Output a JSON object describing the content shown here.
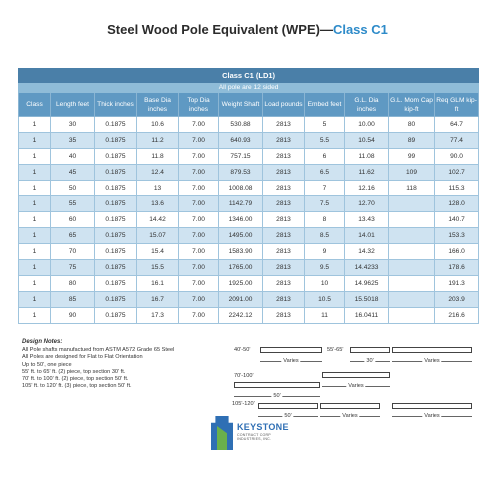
{
  "title": {
    "main": "Steel Wood Pole Equivalent (WPE)—",
    "accent": "Class C1"
  },
  "table": {
    "band_title": "Class C1 (LD1)",
    "band_sub": "All pole are 12 sided",
    "headers": [
      "Class",
      "Length feet",
      "Thick inches",
      "Base Dia inches",
      "Top Dia inches",
      "Weight Shaft",
      "Load pounds",
      "Embed feet",
      "G.L. Dia inches",
      "G.L. Mom Cap kip-ft",
      "Req GLM kip-ft"
    ],
    "rows": [
      [
        "1",
        "30",
        "0.1875",
        "10.6",
        "7.00",
        "530.88",
        "2813",
        "5",
        "10.00",
        "80",
        "64.7"
      ],
      [
        "1",
        "35",
        "0.1875",
        "11.2",
        "7.00",
        "640.93",
        "2813",
        "5.5",
        "10.54",
        "89",
        "77.4"
      ],
      [
        "1",
        "40",
        "0.1875",
        "11.8",
        "7.00",
        "757.15",
        "2813",
        "6",
        "11.08",
        "99",
        "90.0"
      ],
      [
        "1",
        "45",
        "0.1875",
        "12.4",
        "7.00",
        "879.53",
        "2813",
        "6.5",
        "11.62",
        "109",
        "102.7"
      ],
      [
        "1",
        "50",
        "0.1875",
        "13",
        "7.00",
        "1008.08",
        "2813",
        "7",
        "12.16",
        "118",
        "115.3"
      ],
      [
        "1",
        "55",
        "0.1875",
        "13.6",
        "7.00",
        "1142.79",
        "2813",
        "7.5",
        "12.70",
        "",
        "128.0"
      ],
      [
        "1",
        "60",
        "0.1875",
        "14.42",
        "7.00",
        "1346.00",
        "2813",
        "8",
        "13.43",
        "",
        "140.7"
      ],
      [
        "1",
        "65",
        "0.1875",
        "15.07",
        "7.00",
        "1495.00",
        "2813",
        "8.5",
        "14.01",
        "",
        "153.3"
      ],
      [
        "1",
        "70",
        "0.1875",
        "15.4",
        "7.00",
        "1583.90",
        "2813",
        "9",
        "14.32",
        "",
        "166.0"
      ],
      [
        "1",
        "75",
        "0.1875",
        "15.5",
        "7.00",
        "1765.00",
        "2813",
        "9.5",
        "14.4233",
        "",
        "178.6"
      ],
      [
        "1",
        "80",
        "0.1875",
        "16.1",
        "7.00",
        "1925.00",
        "2813",
        "10",
        "14.9625",
        "",
        "191.3"
      ],
      [
        "1",
        "85",
        "0.1875",
        "16.7",
        "7.00",
        "2091.00",
        "2813",
        "10.5",
        "15.5018",
        "",
        "203.9"
      ],
      [
        "1",
        "90",
        "0.1875",
        "17.3",
        "7.00",
        "2242.12",
        "2813",
        "11",
        "16.0411",
        "",
        "216.6"
      ]
    ]
  },
  "notes": {
    "heading": "Design Notes:",
    "lines": [
      "All Pole shafts manufactued from ASTM A572 Grade 65 Steel",
      "All Poles are designed for Flat to Flat Orientation",
      "Up to 50', one piece",
      "55' ft. to 65' ft. (2) piece, top section 30' ft.",
      "70' ft. to 100' ft. (2) piece, top section 50' ft.",
      "105' ft. to 120' ft. (3) piece, top section 50' ft."
    ]
  },
  "diagrams": {
    "d1_label": "40'-50'",
    "d1_dim": "Varies",
    "d2_label": "55'-65'",
    "d2_dim_a": "30'",
    "d2_dim_b": "Varies",
    "d3_label": "70'-100'",
    "d3_dim_a": "50'",
    "d3_dim_b": "Varies",
    "d4_label": "105'-120'",
    "d4_dim_a": "50'",
    "d4_dim_b": "Varies",
    "d4_dim_c": "Varies"
  },
  "logo": {
    "name": "KEYSTONE",
    "sub": "CONTRACT CORP INDUSTRIES, INC."
  },
  "colors": {
    "header": "#5f99c3",
    "band": "#4a7fa8",
    "stripe": "#cfe3f1",
    "accent": "#2e8bc9"
  }
}
